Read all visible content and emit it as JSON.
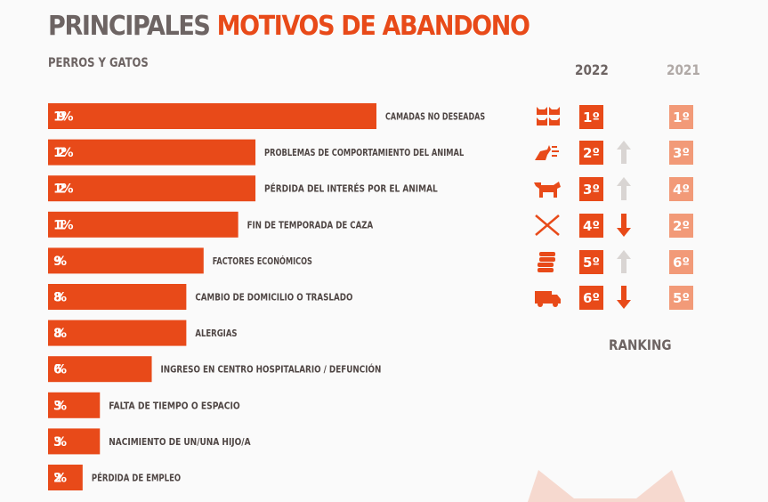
{
  "title_part1": "PRINCIPALES",
  "title_part2": "MOTIVOS DE ABANDONO",
  "subtitle": "PERROS Y GATOS",
  "year_2022": "2022",
  "year_2021": "2021",
  "ranking_label": "RANKING",
  "colors": {
    "bar": "#e84a19",
    "rank_2022": "#e84a19",
    "rank_2021": "#f29a78",
    "arrow_up": "#d9d5d3",
    "arrow_down": "#e84a19",
    "text_dark": "#6d6463"
  },
  "chart_data": {
    "type": "bar",
    "orientation": "horizontal",
    "title": "PRINCIPALES MOTIVOS DE ABANDONO",
    "subtitle": "PERROS Y GATOS",
    "categories": [
      "CAMADAS NO DESEADAS",
      "PROBLEMAS DE COMPORTAMIENTO DEL ANIMAL",
      "PÉRDIDA DEL INTERÉS POR EL ANIMAL",
      "FIN DE TEMPORADA DE CAZA",
      "FACTORES ECONÓMICOS",
      "CAMBIO DE DOMICILIO O TRASLADO",
      "ALERGIAS",
      "INGRESO EN CENTRO HOSPITALARIO / DEFUNCIÓN",
      "FALTA DE TIEMPO O ESPACIO",
      "NACIMIENTO DE UN/UNA HIJO/A",
      "PÉRDIDA DE EMPLEO"
    ],
    "values": [
      19,
      12,
      12,
      11,
      9,
      8,
      8,
      6,
      3,
      3,
      2
    ],
    "value_labels": [
      "19%",
      "12%",
      "12%",
      "11%",
      "9%",
      "8%",
      "8%",
      "6%",
      "3%",
      "3%",
      "2%"
    ],
    "unit": "%",
    "xlim": [
      0,
      19
    ]
  },
  "ranking": [
    {
      "icon": "cats-icon",
      "r2022": "1º",
      "r2021": "1º",
      "trend": "none"
    },
    {
      "icon": "dog-barking-icon",
      "r2022": "2º",
      "r2021": "3º",
      "trend": "up"
    },
    {
      "icon": "dog-icon",
      "r2022": "3º",
      "r2021": "4º",
      "trend": "up"
    },
    {
      "icon": "shotgun-icon",
      "r2022": "4º",
      "r2021": "2º",
      "trend": "down"
    },
    {
      "icon": "coins-icon",
      "r2022": "5º",
      "r2021": "6º",
      "trend": "up"
    },
    {
      "icon": "truck-icon",
      "r2022": "6º",
      "r2021": "5º",
      "trend": "down"
    }
  ]
}
